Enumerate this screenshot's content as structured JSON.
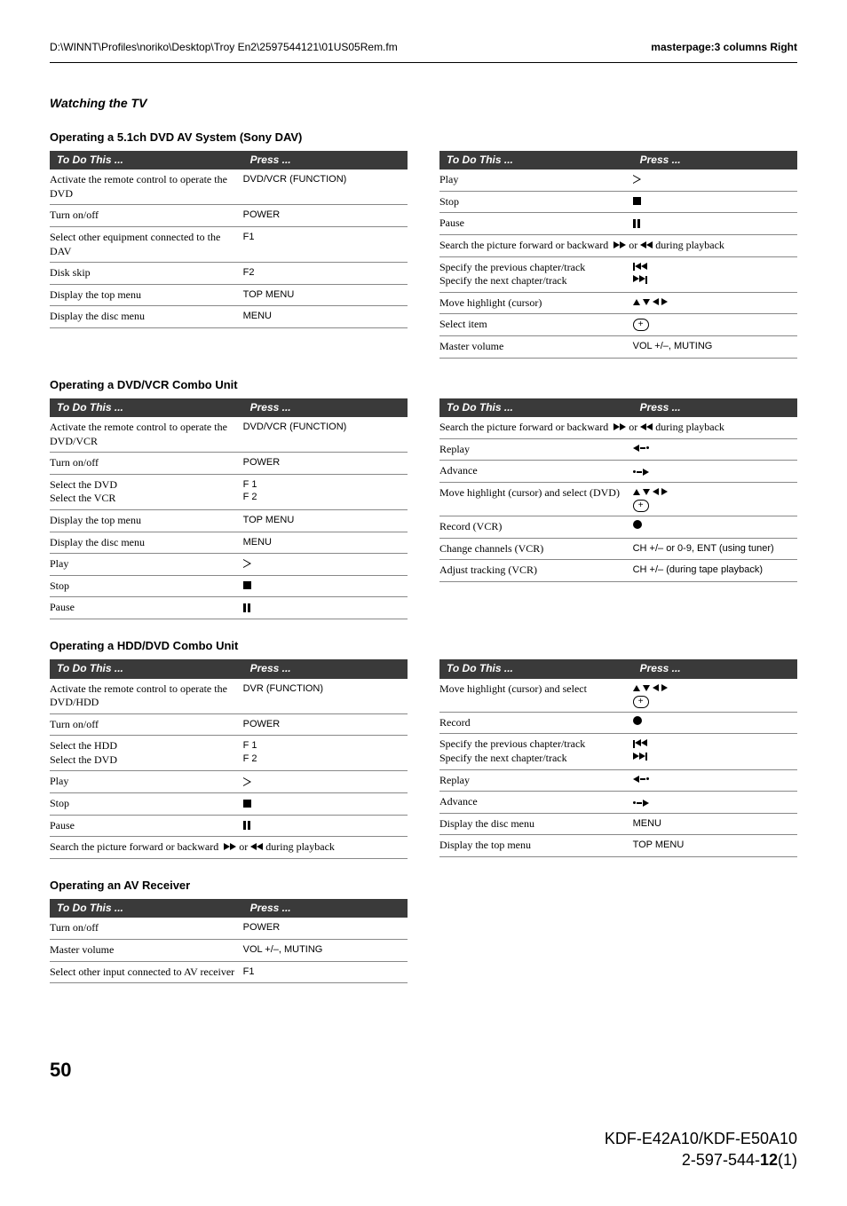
{
  "header": {
    "path": "D:\\WINNT\\Profiles\\noriko\\Desktop\\Troy En2\\2597544121\\01US05Rem.fm",
    "masterpage": "masterpage:3 columns Right"
  },
  "section_title": "Watching the TV",
  "col_headers": {
    "todo": "To Do This ...",
    "press": "Press ..."
  },
  "tables": {
    "dav": {
      "heading": "Operating a 5.1ch DVD AV System (Sony DAV)",
      "rows": [
        {
          "todo": "Activate the remote control to operate the DVD",
          "press": "DVD/VCR (FUNCTION)"
        },
        {
          "todo": "Turn on/off",
          "press": "POWER"
        },
        {
          "todo": "Select other equipment connected to the DAV",
          "press": "F1"
        },
        {
          "todo": "Disk skip",
          "press": "F2"
        },
        {
          "todo": "Display the top menu",
          "press": "TOP MENU"
        },
        {
          "todo": "Display the disc menu",
          "press": "MENU"
        }
      ]
    },
    "dav_r": {
      "rows": [
        {
          "todo": "Play",
          "icon": "play"
        },
        {
          "todo": "Stop",
          "icon": "stop"
        },
        {
          "todo": "Pause",
          "icon": "pause"
        },
        {
          "todo": "Search the picture forward or backward",
          "icon": "ffrw",
          "suffix": " during playback"
        },
        {
          "todo": "Specify the previous chapter/track\nSpecify the next chapter/track",
          "icon": "prevnext"
        },
        {
          "todo": "Move highlight (cursor)",
          "icon": "arrows4"
        },
        {
          "todo": "Select item",
          "icon": "plus"
        },
        {
          "todo": "Master volume",
          "press": "VOL +/–, MUTING"
        }
      ]
    },
    "dvdvcr": {
      "heading": "Operating a DVD/VCR Combo Unit",
      "rows": [
        {
          "todo": "Activate the remote control to operate the DVD/VCR",
          "press": "DVD/VCR (FUNCTION)"
        },
        {
          "todo": "Turn on/off",
          "press": "POWER"
        },
        {
          "todo": "Select the DVD\nSelect the VCR",
          "press": "F 1\nF 2"
        },
        {
          "todo": "Display the top menu",
          "press": "TOP MENU"
        },
        {
          "todo": "Display the disc menu",
          "press": "MENU"
        },
        {
          "todo": "Play",
          "icon": "play"
        },
        {
          "todo": "Stop",
          "icon": "stop"
        },
        {
          "todo": "Pause",
          "icon": "pause"
        }
      ]
    },
    "dvdvcr_r": {
      "rows": [
        {
          "todo": "Search the picture forward or backward",
          "icon": "ffrw",
          "suffix": " during playback"
        },
        {
          "todo": "Replay",
          "icon": "replay"
        },
        {
          "todo": "Advance",
          "icon": "advance"
        },
        {
          "todo": "Move highlight (cursor) and select (DVD)",
          "icon": "arrows4plus"
        },
        {
          "todo": "Record (VCR)",
          "icon": "record"
        },
        {
          "todo": "Change channels (VCR)",
          "press": "CH +/– or 0-9, ENT (using tuner)"
        },
        {
          "todo": "Adjust tracking (VCR)",
          "press": "CH +/– (during tape playback)"
        }
      ]
    },
    "hdd": {
      "heading": "Operating a HDD/DVD Combo Unit",
      "rows": [
        {
          "todo": "Activate the remote control to operate the DVD/HDD",
          "press": "DVR (FUNCTION)"
        },
        {
          "todo": "Turn on/off",
          "press": "POWER"
        },
        {
          "todo": "Select the HDD\nSelect the DVD",
          "press": "F 1\nF 2"
        },
        {
          "todo": "Play",
          "icon": "play"
        },
        {
          "todo": "Stop",
          "icon": "stop"
        },
        {
          "todo": "Pause",
          "icon": "pause"
        },
        {
          "todo": "Search the picture forward or backward",
          "icon": "ffrw",
          "suffix": " during playback"
        }
      ]
    },
    "hdd_r": {
      "rows": [
        {
          "todo": "Move highlight (cursor) and select",
          "icon": "arrows4plus"
        },
        {
          "todo": "Record",
          "icon": "record"
        },
        {
          "todo": "Specify the previous chapter/track\nSpecify the next chapter/track",
          "icon": "prevnext"
        },
        {
          "todo": "Replay",
          "icon": "replay"
        },
        {
          "todo": "Advance",
          "icon": "advance"
        },
        {
          "todo": "Display the disc menu",
          "press": "MENU"
        },
        {
          "todo": "Display the top menu",
          "press": "TOP MENU"
        }
      ]
    },
    "avr": {
      "heading": "Operating an AV Receiver",
      "rows": [
        {
          "todo": "Turn on/off",
          "press": "POWER"
        },
        {
          "todo": "Master volume",
          "press": "VOL +/–, MUTING"
        },
        {
          "todo": "Select other input connected to AV receiver",
          "press": "F1"
        }
      ]
    }
  },
  "footer": {
    "page": "50",
    "model": "KDF-E42A10/KDF-E50A10",
    "docnum_pre": "2-597-544-",
    "docnum_bold": "12",
    "docnum_post": "(1)"
  }
}
